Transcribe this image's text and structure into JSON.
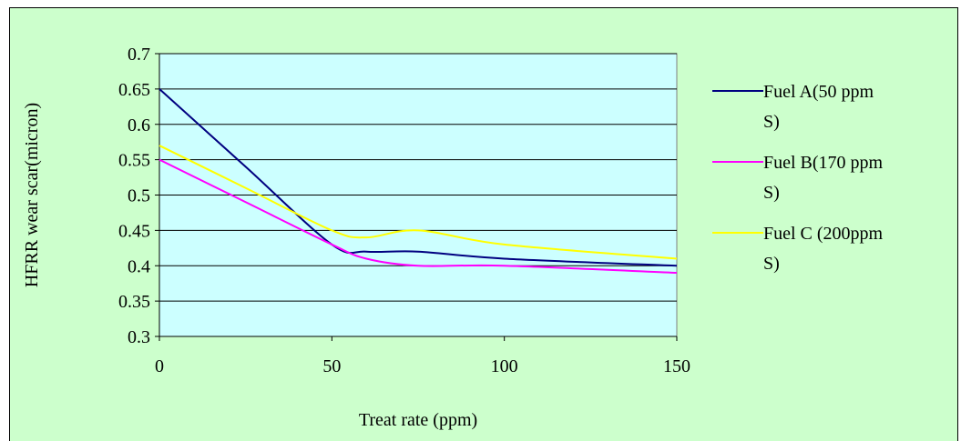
{
  "chart_data": {
    "type": "line",
    "title": "",
    "xlabel": "Treat rate (ppm)",
    "ylabel": "HFRR wear scar(micron)",
    "xlim": [
      0,
      150
    ],
    "ylim": [
      0.3,
      0.7
    ],
    "x_ticks": [
      "0",
      "50",
      "100",
      "150"
    ],
    "y_ticks": [
      "0.3",
      "0.35",
      "0.4",
      "0.45",
      "0.5",
      "0.55",
      "0.6",
      "0.65",
      "0.7"
    ],
    "grid": "horizontal",
    "legend_position": "right",
    "plot_background": "#ccffff",
    "chart_background": "#ccffcc",
    "series": [
      {
        "name_lines": [
          "Fuel A(50 ppm",
          "S)"
        ],
        "color": "#000080",
        "x": [
          0,
          25,
          50,
          60,
          75,
          100,
          150
        ],
        "y": [
          0.65,
          0.54,
          0.43,
          0.42,
          0.42,
          0.41,
          0.4
        ]
      },
      {
        "name_lines": [
          "Fuel B(170 ppm",
          "S)"
        ],
        "color": "#ff00ff",
        "x": [
          0,
          25,
          50,
          60,
          75,
          100,
          150
        ],
        "y": [
          0.55,
          0.49,
          0.43,
          0.41,
          0.4,
          0.4,
          0.39
        ]
      },
      {
        "name_lines": [
          "Fuel C (200ppm",
          "S)"
        ],
        "color": "#ffff00",
        "x": [
          0,
          25,
          50,
          60,
          75,
          100,
          150
        ],
        "y": [
          0.57,
          0.51,
          0.45,
          0.44,
          0.45,
          0.43,
          0.41
        ]
      }
    ]
  }
}
